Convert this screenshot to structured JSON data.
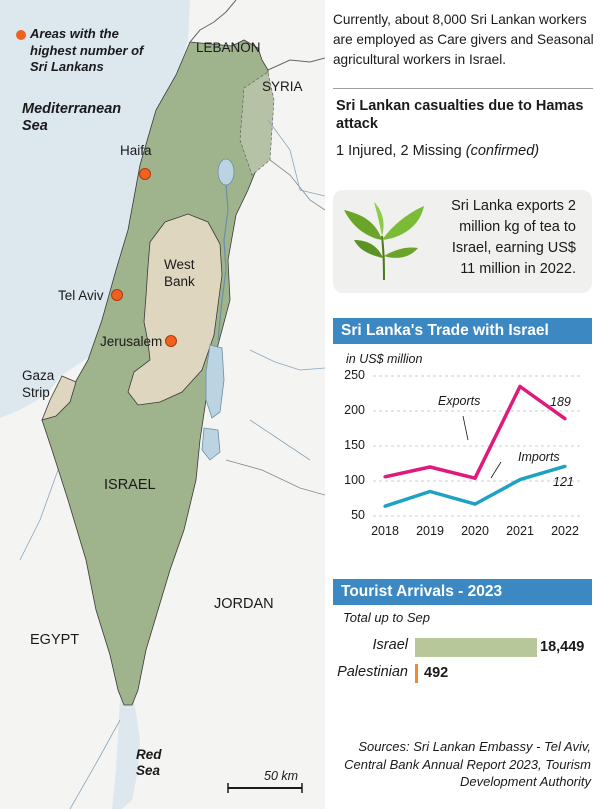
{
  "legend": {
    "label": "Areas with the highest number of Sri Lankans",
    "dot_color": "#f0601f"
  },
  "map_labels": {
    "sea": "Mediterranean Sea",
    "lebanon": "LEBANON",
    "syria": "SYRIA",
    "haifa": "Haifa",
    "west_bank": "West Bank",
    "tel_aviv": "Tel Aviv",
    "jerusalem": "Jerusalem",
    "gaza": "Gaza Strip",
    "israel": "ISRAEL",
    "jordan": "JORDAN",
    "egypt": "EGYPT",
    "red_sea": "Red Sea",
    "scale": "50 km"
  },
  "intro": "Currently, about 8,000 Sri Lankan workers are employed as Care givers and Seasonal agricultural workers in Israel.",
  "casualties": {
    "title": "Sri Lankan casualties due to Hamas attack",
    "body": "1 Injured, 2 Missing",
    "note": "(confirmed)"
  },
  "tea": {
    "text": "Sri Lanka exports 2 million kg of tea to Israel, earning US$ 11 million in 2022."
  },
  "trade": {
    "title": "Sri Lanka's Trade with Israel",
    "unit": "in US$ million",
    "exports_label": "Exports",
    "imports_label": "Imports",
    "exports_end": "189",
    "imports_end": "121"
  },
  "chart_data": {
    "type": "line",
    "title": "Sri Lanka's Trade with Israel",
    "ylabel": "in US$ million",
    "x": [
      "2018",
      "2019",
      "2020",
      "2021",
      "2022"
    ],
    "yticks": [
      "250",
      "200",
      "150",
      "100",
      "50"
    ],
    "ylim": [
      50,
      250
    ],
    "series": [
      {
        "name": "Exports",
        "values": [
          106,
          120,
          104,
          235,
          189
        ],
        "color": "#e0197d"
      },
      {
        "name": "Imports",
        "values": [
          64,
          85,
          67,
          102,
          121
        ],
        "color": "#1ea2c2"
      }
    ]
  },
  "tourism": {
    "title": "Tourist Arrivals - 2023",
    "subtitle": "Total up to Sep",
    "rows": [
      {
        "name": "Israel",
        "value_label": "18,449",
        "value": 18449,
        "color": "#b8c79a"
      },
      {
        "name": "Palestinian",
        "value_label": "492",
        "value": 492,
        "color": "#f08a2c"
      }
    ]
  },
  "sources": "Sources: Sri Lankan Embassy - Tel Aviv, Central Bank Annual Report 2023, Tourism Development Authority",
  "colors": {
    "header_blue": "#3b88c3",
    "sea": "#dce7ee",
    "israel": "#9fb38c",
    "west_bank": "#ded6bf",
    "land": "#f4f4f2"
  }
}
